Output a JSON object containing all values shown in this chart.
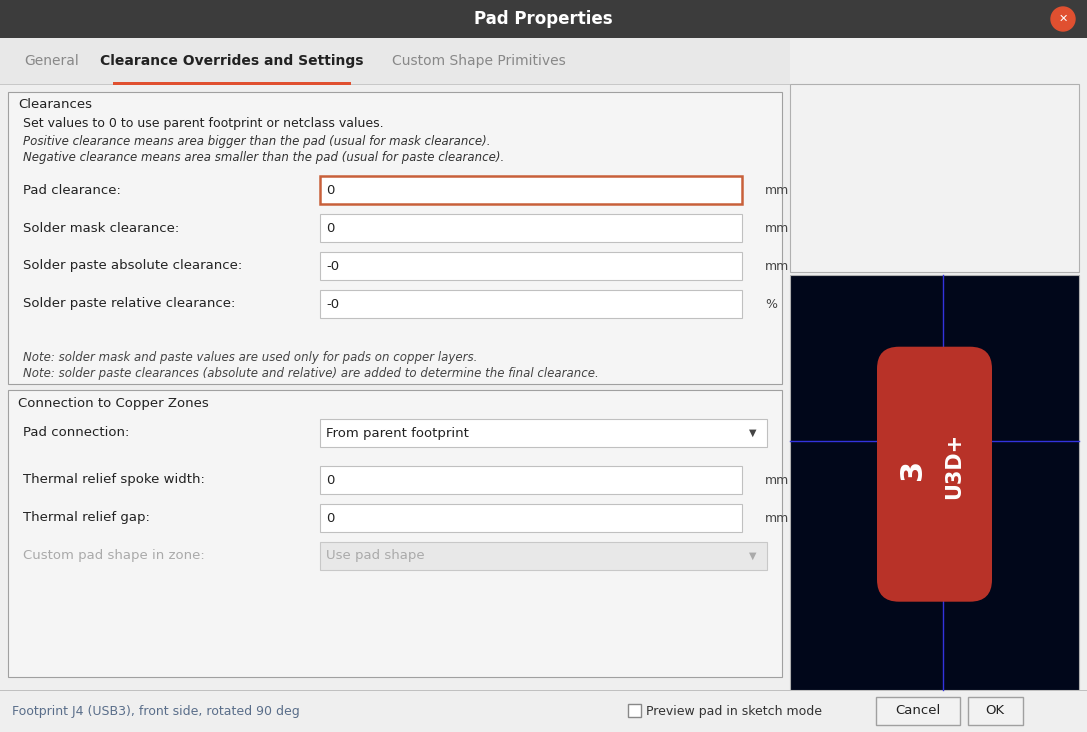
{
  "title": "Pad Properties",
  "title_bar_color": "#3c3c3c",
  "title_text_color": "#ffffff",
  "close_btn_color": "#e05030",
  "tab_active": "Clearance Overrides and Settings",
  "tab_inactive1": "General",
  "tab_inactive2": "Custom Shape Primitives",
  "tab_underline_color": "#e05030",
  "dialog_bg": "#efefef",
  "dialog_border": "#b0b0b0",
  "section1_title": "Clearances",
  "section1_desc1": "Set values to 0 to use parent footprint or netclass values.",
  "section1_desc2_italic": "Positive clearance means area bigger than the pad (usual for mask clearance).",
  "section1_desc3_italic": "Negative clearance means area smaller than the pad (usual for paste clearance).",
  "fields": [
    {
      "label": "Pad clearance:",
      "value": "0",
      "unit": "mm",
      "active": true
    },
    {
      "label": "Solder mask clearance:",
      "value": "0",
      "unit": "mm",
      "active": false
    },
    {
      "label": "Solder paste absolute clearance:",
      "value": "-0",
      "unit": "mm",
      "active": false
    },
    {
      "label": "Solder paste relative clearance:",
      "value": "-0",
      "unit": "%",
      "active": false
    }
  ],
  "note1": "Note: solder mask and paste values are used only for pads on copper layers.",
  "note2": "Note: solder paste clearances (absolute and relative) are added to determine the final clearance.",
  "section2_title": "Connection to Copper Zones",
  "dropdown_label": "Pad connection:",
  "dropdown_value": "From parent footprint",
  "fields2": [
    {
      "label": "Thermal relief spoke width:",
      "value": "0",
      "unit": "mm"
    },
    {
      "label": "Thermal relief gap:",
      "value": "0",
      "unit": "mm"
    }
  ],
  "dropdown2_label": "Custom pad shape in zone:",
  "dropdown2_value": "Use pad shape",
  "status_text": "Footprint J4 (USB3), front side, rotated 90 deg",
  "status_text_color": "#5a6e8a",
  "preview_checkbox_text": "Preview pad in sketch mode",
  "cancel_btn": "Cancel",
  "ok_btn": "OK",
  "preview_bg": "#01071a",
  "pad_color": "#b83228",
  "pad_text1": "3",
  "pad_text2": "U3D+",
  "crosshair_color": "#3333dd",
  "input_bg": "#ffffff",
  "input_border_active": "#c8603a",
  "input_border_inactive": "#c0c0c0",
  "section_border": "#a0a0a0",
  "white_preview_bg": "#f0f0f0",
  "tab_bar_bg": "#e8e8e8"
}
